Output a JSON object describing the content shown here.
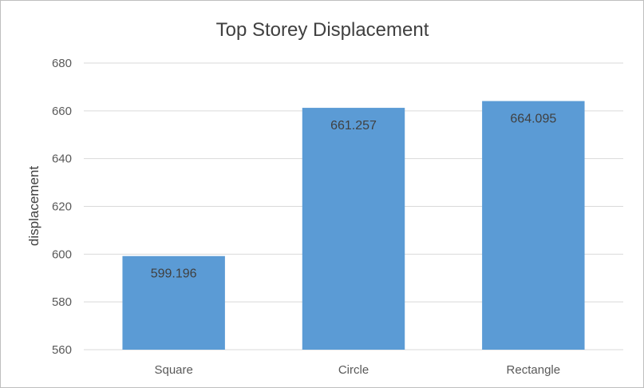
{
  "chart_data": {
    "type": "bar",
    "title": "Top Storey Displacement",
    "xlabel": "",
    "ylabel": "displacement",
    "categories": [
      "Square",
      "Circle",
      "Rectangle"
    ],
    "values": [
      599.196,
      661.257,
      664.095
    ],
    "data_labels": [
      "599.196",
      "661.257",
      "664.095"
    ],
    "ylim": [
      560,
      680
    ],
    "yticks": [
      560,
      580,
      600,
      620,
      640,
      660,
      680
    ],
    "grid": true,
    "legend": "none",
    "bar_color": "#5b9bd5"
  }
}
